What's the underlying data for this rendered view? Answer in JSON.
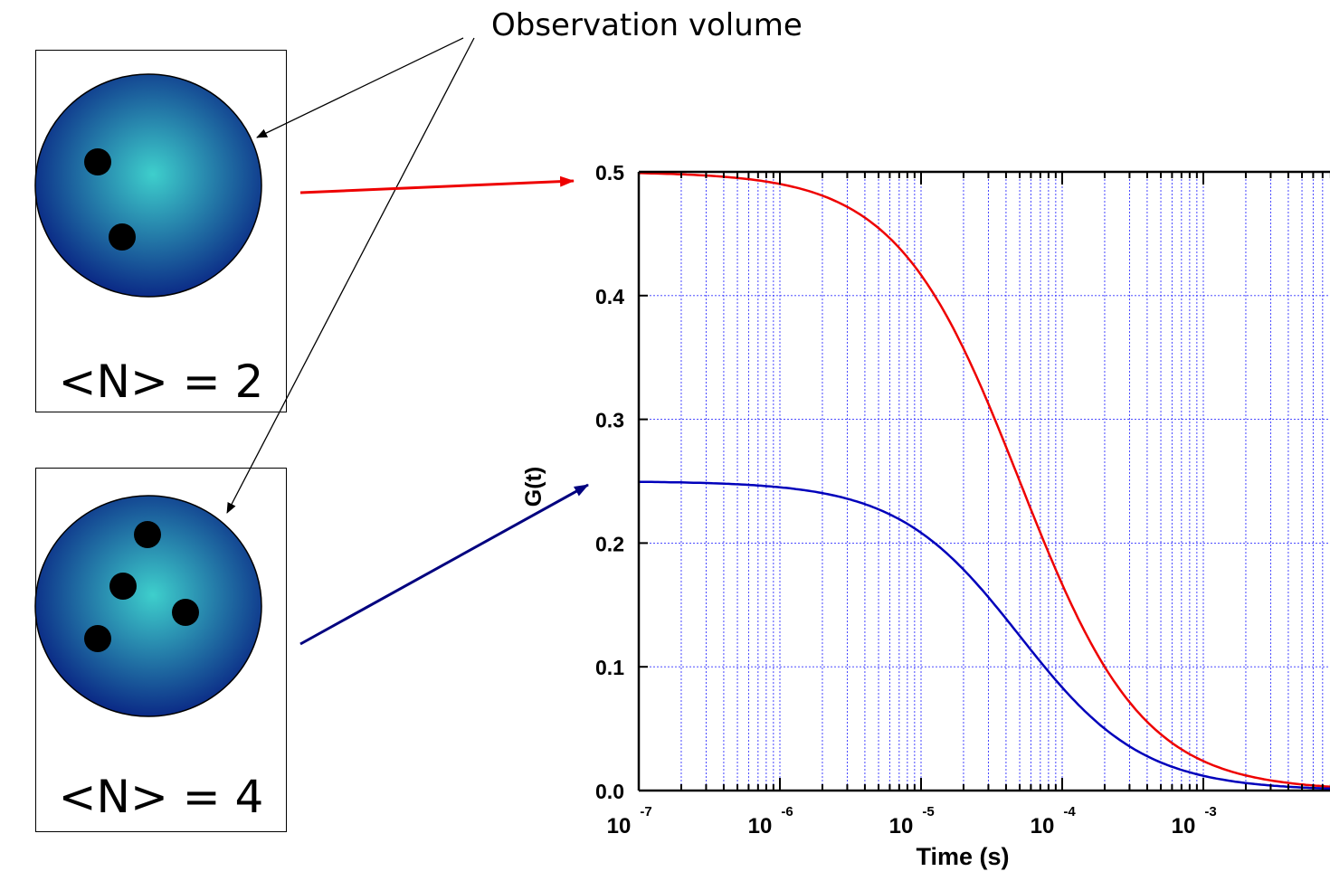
{
  "annotation": {
    "text": "Observation volume"
  },
  "panels": [
    {
      "label": "<N> = 2",
      "particle_count": 2,
      "arrow_color": "#ee0000",
      "points_to_level": 0.5
    },
    {
      "label": "<N> = 4",
      "particle_count": 4,
      "arrow_color": "#00007f",
      "points_to_level": 0.25
    }
  ],
  "colors": {
    "sphere_center": "#3ecfcc",
    "sphere_edge": "#0b2a86",
    "particle": "#000000",
    "grid": "#3333ff"
  },
  "chart_data": {
    "type": "line",
    "xlabel": "Time (s)",
    "ylabel": "G(t)",
    "xscale": "log",
    "xlim": [
      1e-07,
      0.01
    ],
    "ylim": [
      0.0,
      0.5
    ],
    "grid": true,
    "x_tick_labels": [
      {
        "base": "10",
        "exp": "-7"
      },
      {
        "base": "10",
        "exp": "-6"
      },
      {
        "base": "10",
        "exp": "-5"
      },
      {
        "base": "10",
        "exp": "-4"
      },
      {
        "base": "10",
        "exp": "-3"
      }
    ],
    "y_tick_labels": [
      "0.0",
      "0.1",
      "0.2",
      "0.3",
      "0.4",
      "0.5"
    ],
    "series": [
      {
        "color": "#ee0000",
        "G0": 0.5,
        "tau_d": 5e-05,
        "x": [
          1e-07,
          1e-06,
          5e-06,
          1e-05,
          2e-05,
          5e-05,
          0.0001,
          0.0002,
          0.0005,
          0.001,
          0.01
        ],
        "y": [
          0.5,
          0.49,
          0.455,
          0.417,
          0.357,
          0.25,
          0.167,
          0.1,
          0.045,
          0.024,
          0.002
        ]
      },
      {
        "color": "#0000bb",
        "G0": 0.25,
        "tau_d": 5e-05,
        "x": [
          1e-07,
          1e-06,
          5e-06,
          1e-05,
          2e-05,
          5e-05,
          0.0001,
          0.0002,
          0.0005,
          0.001,
          0.01
        ],
        "y": [
          0.25,
          0.245,
          0.227,
          0.208,
          0.179,
          0.125,
          0.083,
          0.05,
          0.023,
          0.012,
          0.001
        ]
      }
    ]
  }
}
